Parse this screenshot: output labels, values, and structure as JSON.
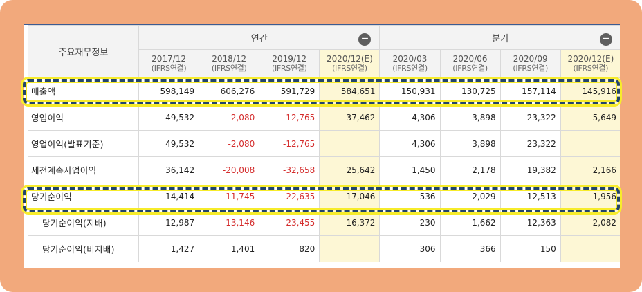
{
  "header": {
    "row_label": "주요재무정보",
    "group_annual": "연간",
    "group_quarterly": "분기",
    "collapse_icon": "minus-circle-icon"
  },
  "columns": [
    {
      "period": "2017/12",
      "basis": "(IFRS연결)"
    },
    {
      "period": "2018/12",
      "basis": "(IFRS연결)"
    },
    {
      "period": "2019/12",
      "basis": "(IFRS연결)"
    },
    {
      "period": "2020/12(E)",
      "basis": "(IFRS연결)"
    },
    {
      "period": "2020/03",
      "basis": "(IFRS연결)"
    },
    {
      "period": "2020/06",
      "basis": "(IFRS연결)"
    },
    {
      "period": "2020/09",
      "basis": "(IFRS연결)"
    },
    {
      "period": "2020/12(E)",
      "basis": "(IFRS연결)"
    }
  ],
  "rows": [
    {
      "label": "매출액",
      "values": [
        "598,149",
        "606,276",
        "591,729",
        "584,651",
        "150,931",
        "130,725",
        "157,114",
        "145,916"
      ]
    },
    {
      "label": "영업이익",
      "values": [
        "49,532",
        "-2,080",
        "-12,765",
        "37,462",
        "4,306",
        "3,898",
        "23,322",
        "5,649"
      ]
    },
    {
      "label": "영업이익(발표기준)",
      "values": [
        "49,532",
        "-2,080",
        "-12,765",
        "",
        "4,306",
        "3,898",
        "23,322",
        ""
      ]
    },
    {
      "label": "세전계속사업이익",
      "values": [
        "36,142",
        "-20,008",
        "-32,658",
        "25,642",
        "1,450",
        "2,178",
        "19,382",
        "2,166"
      ]
    },
    {
      "label": "당기순이익",
      "values": [
        "14,414",
        "-11,745",
        "-22,635",
        "17,046",
        "536",
        "2,029",
        "12,513",
        "1,956"
      ]
    },
    {
      "label": "당기순이익(지배)",
      "values": [
        "12,987",
        "-13,146",
        "-23,455",
        "16,372",
        "230",
        "1,662",
        "12,363",
        "2,082"
      ]
    },
    {
      "label": "당기순이익(비지배)",
      "values": [
        "1,427",
        "1,401",
        "820",
        "",
        "306",
        "366",
        "150",
        ""
      ]
    }
  ],
  "colors": {
    "frame": "#f2a97c",
    "negative": "#d42c2c",
    "estimate_bg": "#fdf7d5",
    "highlight_dash": "#22446b",
    "highlight_glow": "#f7ec2b"
  }
}
